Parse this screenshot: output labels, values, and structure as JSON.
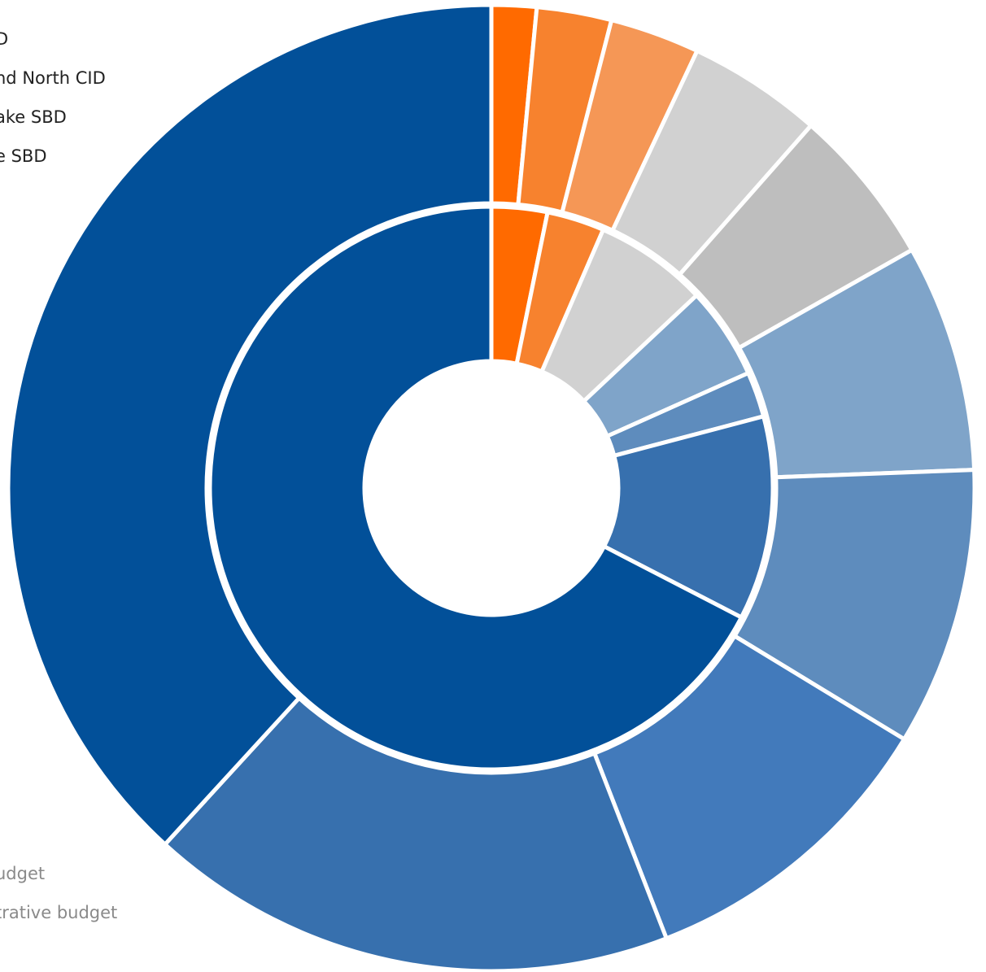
{
  "legend_top": [
    {
      "text": "D"
    },
    {
      "text": "nd North CID"
    },
    {
      "text": "ake SBD"
    },
    {
      "text": "e SBD"
    }
  ],
  "legend_bottom": [
    {
      "text": "udget"
    },
    {
      "text": "trative budget"
    }
  ],
  "chart_data": {
    "type": "pie",
    "variant": "nested-donut",
    "title": "",
    "rings": [
      {
        "name": "outer",
        "slices": [
          {
            "value": 1.5,
            "color": "#ff6a00"
          },
          {
            "value": 2.5,
            "color": "#f7822e"
          },
          {
            "value": 3.0,
            "color": "#f59756"
          },
          {
            "value": 4.5,
            "color": "#d1d1d1"
          },
          {
            "value": 5.3,
            "color": "#bebebe"
          },
          {
            "value": 7.6,
            "color": "#7fa4c9"
          },
          {
            "value": 9.3,
            "color": "#5e8cbd"
          },
          {
            "value": 10.4,
            "color": "#427abb"
          },
          {
            "value": 17.7,
            "color": "#3770ae"
          },
          {
            "value": 38.2,
            "color": "#025099"
          }
        ]
      },
      {
        "name": "inner",
        "slices": [
          {
            "value": 3.2,
            "color": "#ff6a00"
          },
          {
            "value": 3.3,
            "color": "#f7822e"
          },
          {
            "value": 6.5,
            "color": "#d1d1d1"
          },
          {
            "value": 5.3,
            "color": "#7fa4c9"
          },
          {
            "value": 2.6,
            "color": "#5e8cbd"
          },
          {
            "value": 11.7,
            "color": "#3770ae"
          },
          {
            "value": 67.4,
            "color": "#025099"
          }
        ]
      }
    ]
  }
}
